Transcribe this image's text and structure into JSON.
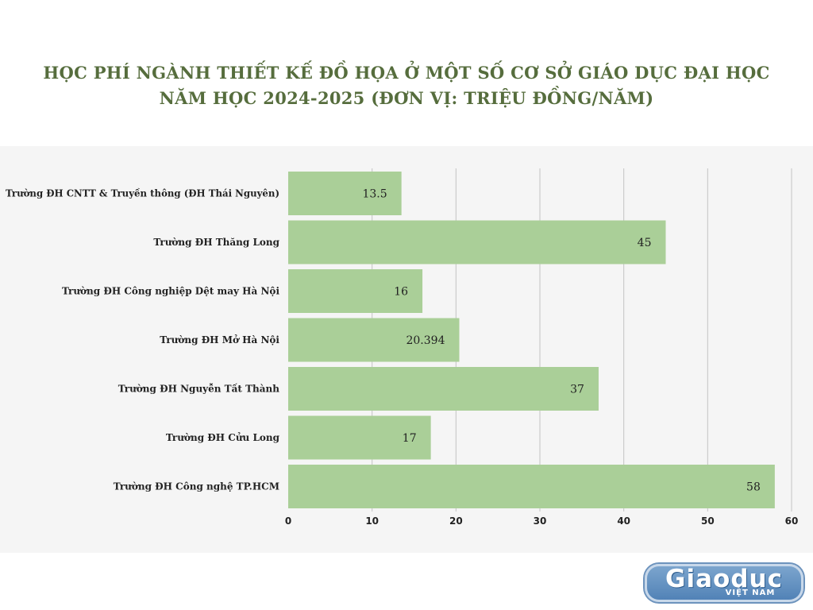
{
  "title": {
    "line1": "HỌC PHÍ NGÀNH THIẾT KẾ ĐỒ HỌA Ở MỘT SỐ CƠ SỞ GIÁO DỤC ĐẠI HỌC",
    "line2": "NĂM HỌC 2024-2025 (ĐƠN VỊ: TRIỆU ĐỒNG/NĂM)"
  },
  "logo": {
    "main": "Giaoduc",
    "sub": "VIỆT NAM"
  },
  "colors": {
    "bar": "#aacf98",
    "title": "#566d3d",
    "grid": "#c4c4c4",
    "panel": "#f5f5f5",
    "text": "#222222"
  },
  "chart_data": {
    "type": "bar",
    "orientation": "horizontal",
    "categories": [
      "Trường ĐH CNTT & Truyền thông (ĐH Thái Nguyên)",
      "Trường ĐH Thăng Long",
      "Trường ĐH Công nghiệp Dệt may Hà Nội",
      "Trường ĐH Mở Hà Nội",
      "Trường ĐH Nguyễn Tất Thành",
      "Trường ĐH Cửu Long",
      "Trường ĐH Công nghệ TP.HCM"
    ],
    "values": [
      13.5,
      45,
      16,
      20.394,
      37,
      17,
      58
    ],
    "value_labels": [
      "13.5",
      "45",
      "16",
      "20.394",
      "37",
      "17",
      "58"
    ],
    "xlim": [
      0,
      60
    ],
    "xticks": [
      0,
      10,
      20,
      30,
      40,
      50,
      60
    ],
    "grid": "vertical",
    "legend": "none"
  }
}
